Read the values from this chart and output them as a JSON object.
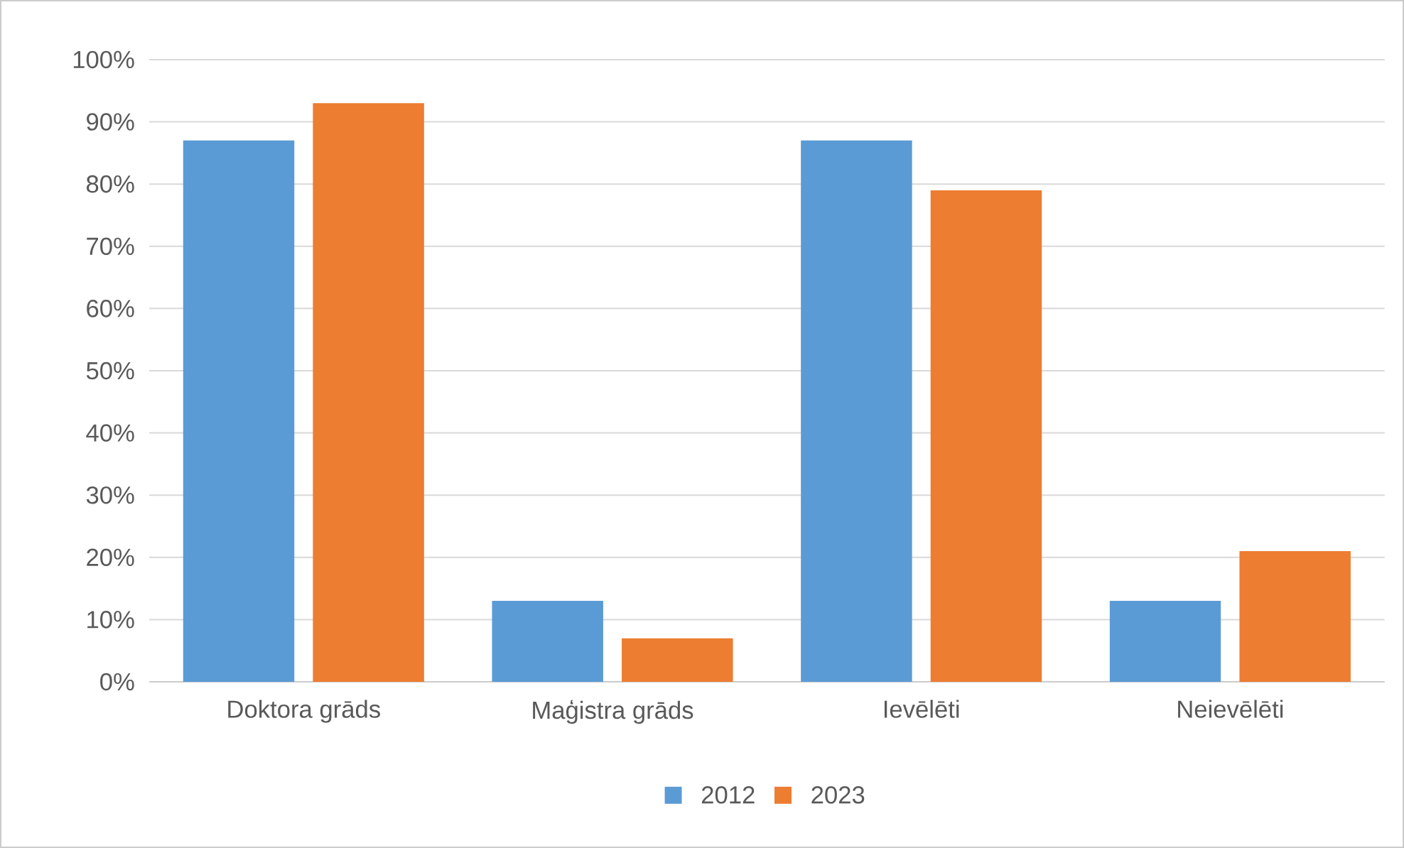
{
  "chart_data": {
    "type": "bar",
    "categories": [
      "Doktora grāds",
      "Maģistra grāds",
      "Ievēlēti",
      "Neievēlēti"
    ],
    "series": [
      {
        "name": "2012",
        "color": "#5b9bd5",
        "values": [
          87,
          13,
          87,
          13
        ]
      },
      {
        "name": "2023",
        "color": "#ed7d31",
        "values": [
          93,
          7,
          79,
          21
        ]
      }
    ],
    "ylim": [
      0,
      100
    ],
    "yticks": [
      {
        "value": 0,
        "label": "0%"
      },
      {
        "value": 10,
        "label": "10%"
      },
      {
        "value": 20,
        "label": "20%"
      },
      {
        "value": 30,
        "label": "30%"
      },
      {
        "value": 40,
        "label": "40%"
      },
      {
        "value": 50,
        "label": "50%"
      },
      {
        "value": 60,
        "label": "60%"
      },
      {
        "value": 70,
        "label": "70%"
      },
      {
        "value": 80,
        "label": "80%"
      },
      {
        "value": 90,
        "label": "90%"
      },
      {
        "value": 100,
        "label": "100%"
      }
    ],
    "grid": "y",
    "legend": "bottom"
  }
}
